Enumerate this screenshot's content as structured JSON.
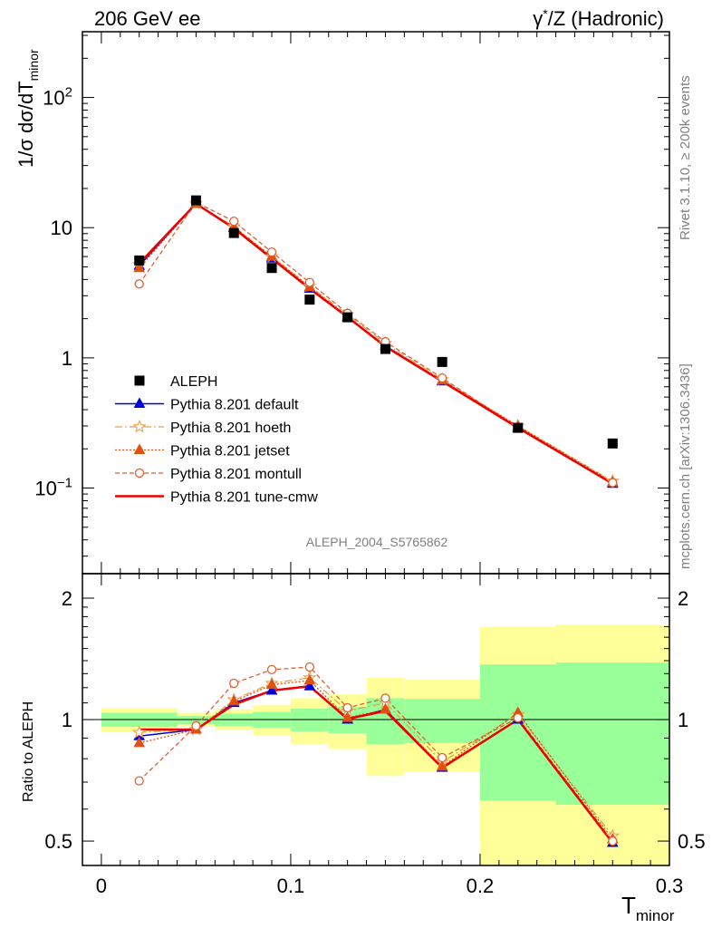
{
  "header": {
    "left": "206 GeV ee",
    "right_sup": "*",
    "right_prefix": "γ",
    "right_suffix": "/Z (Hadronic)"
  },
  "side_labels": {
    "rivet": "Rivet 3.1.10, ≥ 200k events",
    "mcplots": "mcplots.cern.ch [arXiv:1306.3436]"
  },
  "analysis_id": "ALEPH_2004_S5765862",
  "main_ylabel": {
    "a": "1/σ  dσ/dT",
    "sub": "minor"
  },
  "ratio_ylabel": "Ratio to ALEPH",
  "xlabel": {
    "main": "T",
    "sub": "minor"
  },
  "colors": {
    "data": "#000000",
    "default": "#0000dd",
    "hoeth": "#e8a050",
    "jetset": "#e05010",
    "montull": "#e06030",
    "tune_cmw": "#ee0000",
    "band_inner": "#99ff99",
    "band_outer": "#ffff99"
  },
  "chart_data": [
    {
      "type": "scatter",
      "scale": "log",
      "xlim": [
        -0.01,
        0.3
      ],
      "ylim": [
        0.022,
        320
      ],
      "x_ticks": [
        0,
        0.1,
        0.2,
        0.3
      ],
      "y_ticks": [
        {
          "v": 0.1,
          "label": "10",
          "sup": "−1"
        },
        {
          "v": 1,
          "label": "1",
          "sup": ""
        },
        {
          "v": 10,
          "label": "10",
          "sup": ""
        },
        {
          "v": 100,
          "label": "10",
          "sup": "2"
        }
      ],
      "x": [
        0.02,
        0.05,
        0.07,
        0.09,
        0.11,
        0.13,
        0.15,
        0.18,
        0.22,
        0.27
      ],
      "series": [
        {
          "key": "data",
          "name": "ALEPH",
          "values": [
            5.6,
            16.2,
            9.1,
            4.9,
            2.8,
            2.05,
            1.17,
            0.93,
            0.29,
            0.22
          ]
        },
        {
          "key": "default",
          "name": "Pythia 8.201 default",
          "values": [
            5.1,
            15.3,
            10.0,
            5.8,
            3.4,
            2.05,
            1.24,
            0.66,
            0.29,
            0.108
          ]
        },
        {
          "key": "hoeth",
          "name": "Pythia 8.201 hoeth",
          "values": [
            5.2,
            15.3,
            10.2,
            6.0,
            3.55,
            2.15,
            1.29,
            0.68,
            0.3,
            0.113
          ]
        },
        {
          "key": "jetset",
          "name": "Pythia 8.201 jetset",
          "values": [
            4.9,
            15.3,
            10.1,
            6.0,
            3.5,
            2.08,
            1.24,
            0.67,
            0.3,
            0.111
          ]
        },
        {
          "key": "montull",
          "name": "Pythia 8.201 montull",
          "values": [
            3.7,
            15.7,
            11.2,
            6.5,
            3.8,
            2.2,
            1.33,
            0.7,
            0.29,
            0.11
          ]
        },
        {
          "key": "tune_cmw",
          "name": "Pythia 8.201 tune-cmw",
          "values": [
            5.3,
            15.3,
            9.9,
            5.8,
            3.4,
            2.06,
            1.22,
            0.66,
            0.29,
            0.108
          ]
        }
      ]
    },
    {
      "type": "line",
      "scale": "log",
      "xlim": [
        -0.01,
        0.3
      ],
      "ylim": [
        0.435,
        2.3
      ],
      "y_ticks": [
        {
          "v": 0.5,
          "label": "0.5"
        },
        {
          "v": 1,
          "label": "1"
        },
        {
          "v": 2,
          "label": "2"
        }
      ],
      "bins": [
        {
          "lo": 0.0,
          "hi": 0.04,
          "inner": [
            0.96,
            1.04
          ],
          "outer": [
            0.93,
            1.07
          ]
        },
        {
          "lo": 0.04,
          "hi": 0.06,
          "inner": [
            0.975,
            1.02
          ],
          "outer": [
            0.96,
            1.04
          ]
        },
        {
          "lo": 0.06,
          "hi": 0.08,
          "inner": [
            0.965,
            1.035
          ],
          "outer": [
            0.94,
            1.06
          ]
        },
        {
          "lo": 0.08,
          "hi": 0.1,
          "inner": [
            0.955,
            1.045
          ],
          "outer": [
            0.915,
            1.085
          ]
        },
        {
          "lo": 0.1,
          "hi": 0.12,
          "inner": [
            0.935,
            1.065
          ],
          "outer": [
            0.87,
            1.13
          ]
        },
        {
          "lo": 0.12,
          "hi": 0.14,
          "inner": [
            0.925,
            1.075
          ],
          "outer": [
            0.845,
            1.155
          ]
        },
        {
          "lo": 0.14,
          "hi": 0.16,
          "inner": [
            0.87,
            1.13
          ],
          "outer": [
            0.725,
            1.27
          ]
        },
        {
          "lo": 0.16,
          "hi": 0.2,
          "inner": [
            0.875,
            1.125
          ],
          "outer": [
            0.745,
            1.255
          ]
        },
        {
          "lo": 0.2,
          "hi": 0.24,
          "inner": [
            0.63,
            1.37
          ],
          "outer": [
            0.29,
            1.7
          ]
        },
        {
          "lo": 0.24,
          "hi": 0.3,
          "inner": [
            0.615,
            1.385
          ],
          "outer": [
            0.26,
            1.72
          ]
        }
      ],
      "x": [
        0.02,
        0.05,
        0.07,
        0.09,
        0.11,
        0.13,
        0.15,
        0.18,
        0.22,
        0.27
      ],
      "series": [
        {
          "key": "default",
          "values": [
            0.91,
            0.945,
            1.1,
            1.18,
            1.21,
            1.0,
            1.06,
            0.76,
            1.0,
            0.495
          ]
        },
        {
          "key": "hoeth",
          "values": [
            0.93,
            0.945,
            1.12,
            1.23,
            1.27,
            1.05,
            1.1,
            0.785,
            1.03,
            0.515
          ]
        },
        {
          "key": "jetset",
          "values": [
            0.875,
            0.945,
            1.11,
            1.22,
            1.25,
            1.01,
            1.06,
            0.765,
            1.04,
            0.505
          ]
        },
        {
          "key": "montull",
          "values": [
            0.705,
            0.965,
            1.23,
            1.33,
            1.35,
            1.07,
            1.13,
            0.805,
            1.01,
            0.5
          ]
        },
        {
          "key": "tune_cmw",
          "values": [
            0.945,
            0.945,
            1.09,
            1.18,
            1.21,
            1.005,
            1.05,
            0.76,
            1.0,
            0.495
          ]
        }
      ]
    }
  ]
}
